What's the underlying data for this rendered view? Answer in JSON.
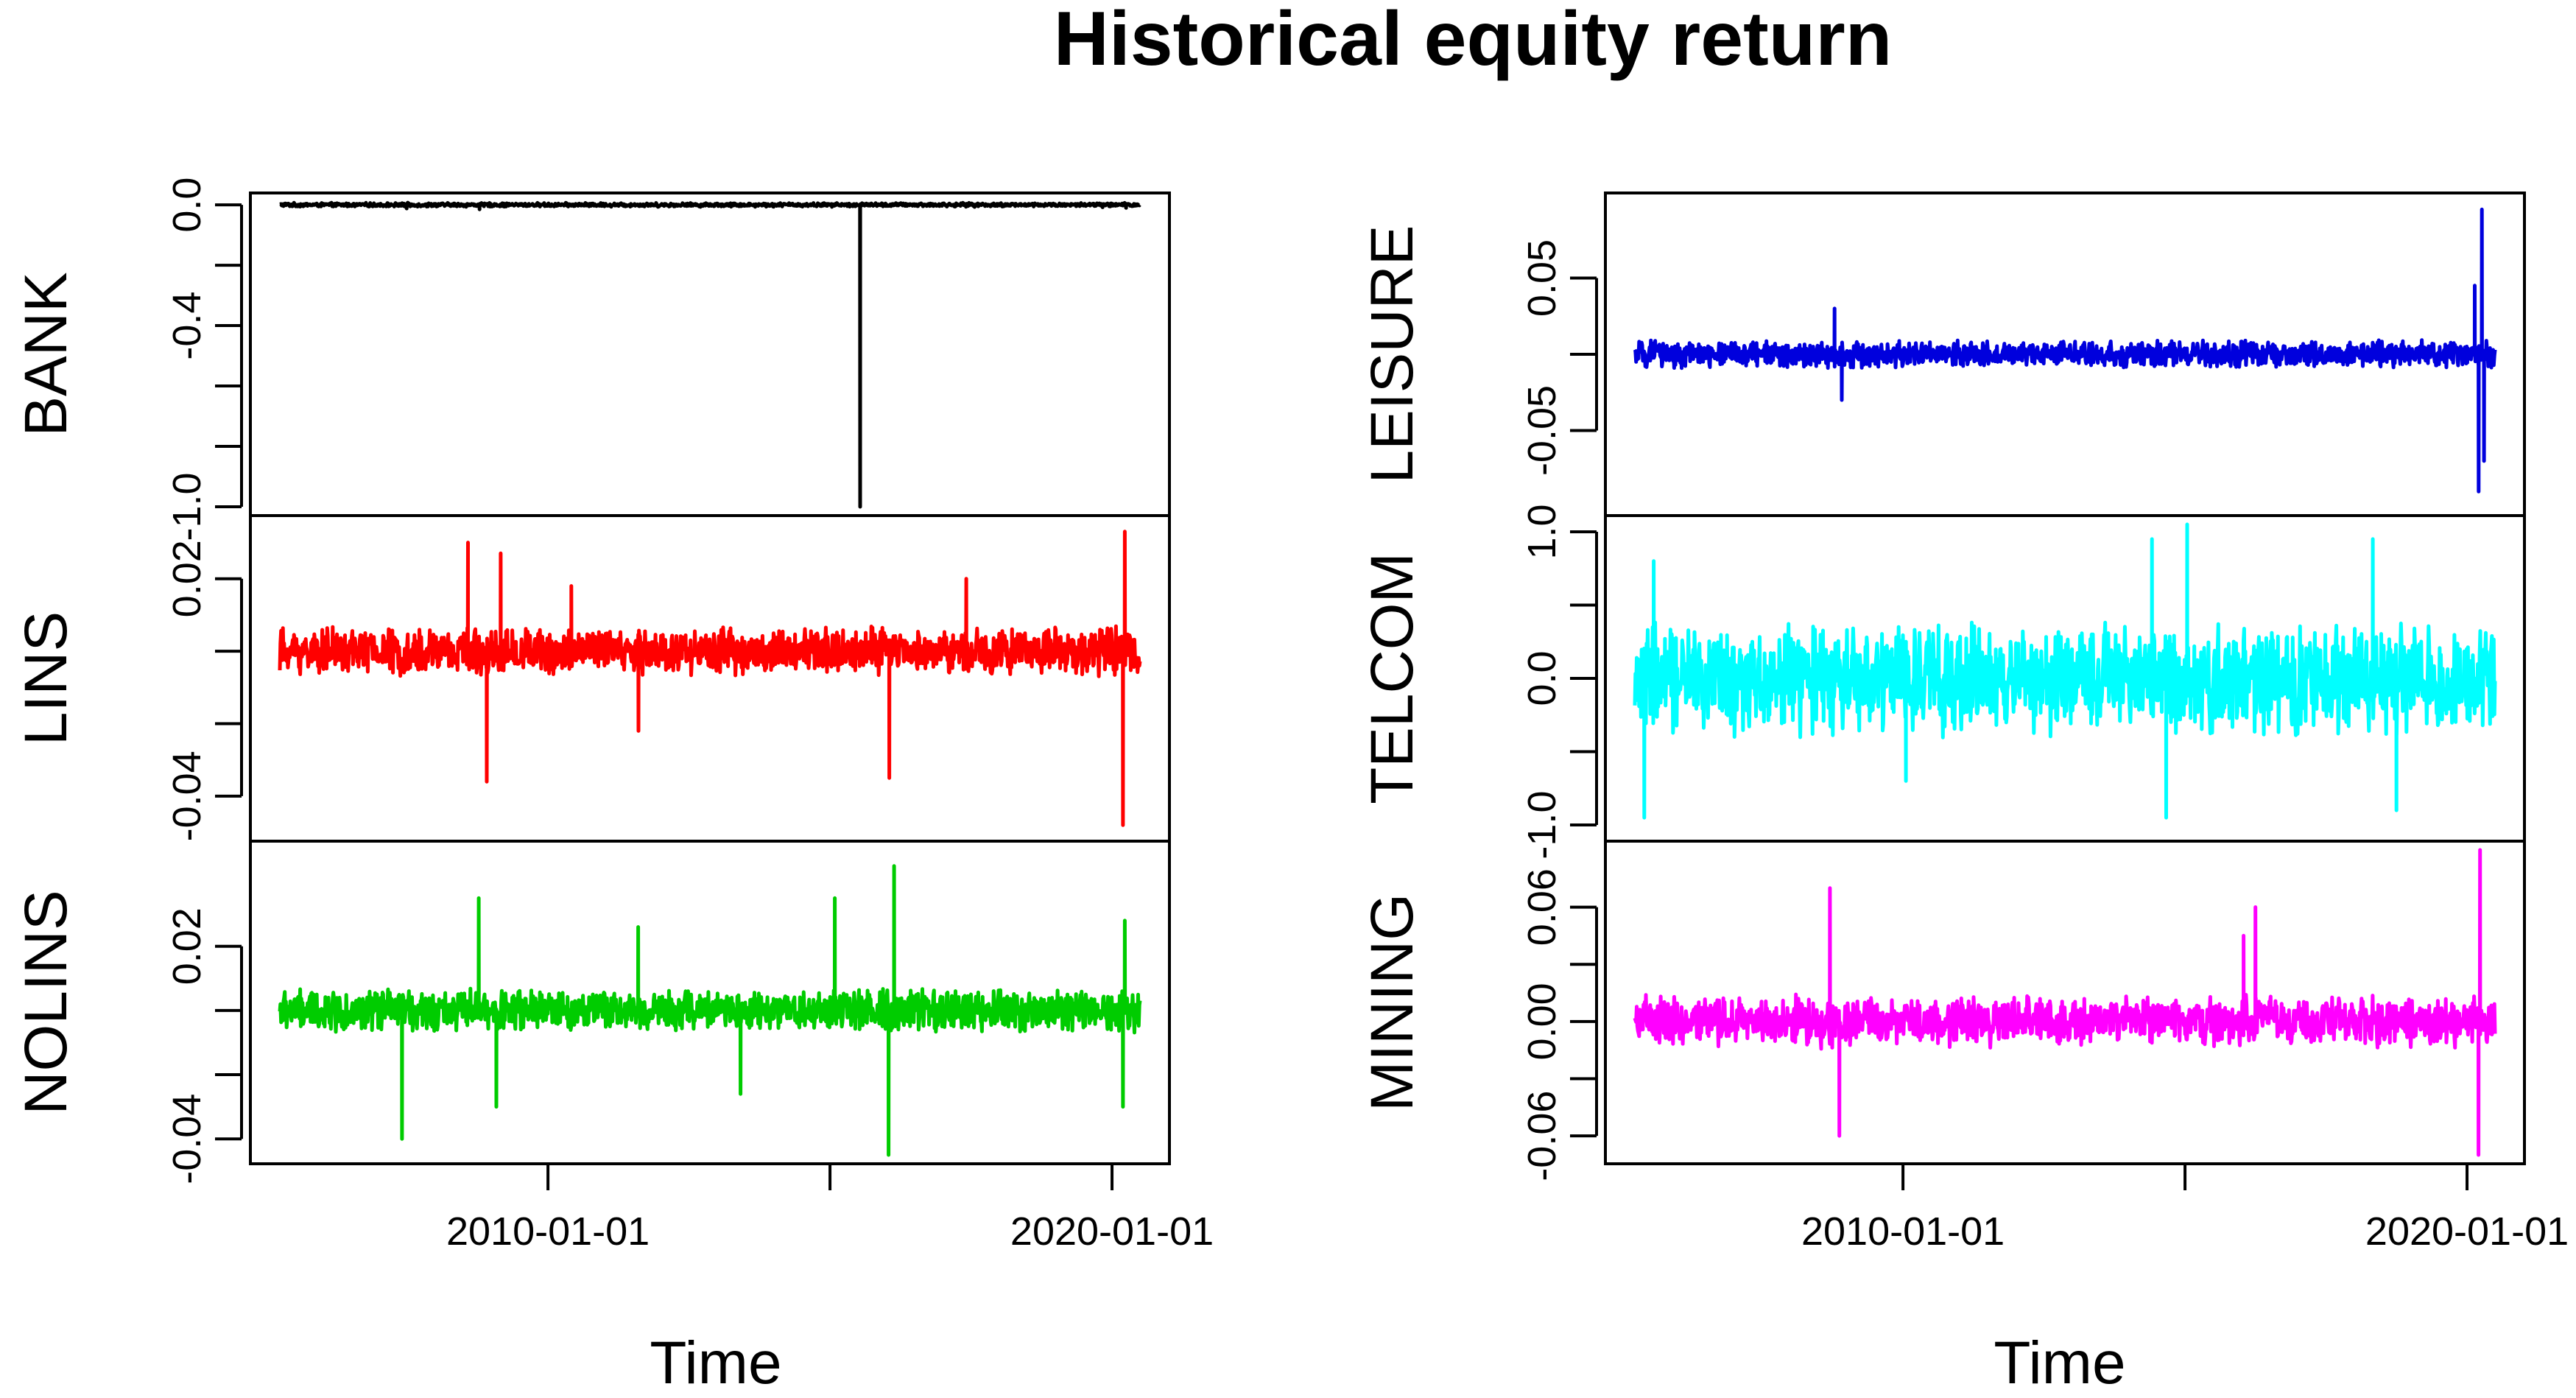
{
  "chart_data": {
    "type": "line",
    "title": "Historical equity return",
    "xlabel": "Time",
    "x_range": [
      "2005-04-01",
      "2020-06-30"
    ],
    "x_ticks": [
      "2010-01-01",
      "2015-01-01",
      "2020-01-01"
    ],
    "x_tick_labels": [
      "2010-01-01",
      "",
      "2020-01-01"
    ],
    "panels": [
      {
        "column": "left",
        "ylabel": "BANK",
        "color": "#000000",
        "ylim": [
          -1.0,
          0.01
        ],
        "y_ticks": [
          0.0,
          -0.2,
          -0.4,
          -0.6,
          -0.8,
          -1.0
        ],
        "y_tick_labels": [
          "0.0",
          "",
          "-0.4",
          "",
          "",
          "-1.0"
        ],
        "noise_amplitude": 0.006,
        "spikes": [
          {
            "date": "2015-07-15",
            "value": -1.0
          },
          {
            "date": "2007-07-01",
            "value": -0.012
          },
          {
            "date": "2008-10-15",
            "value": -0.015
          },
          {
            "date": "2019-11-01",
            "value": -0.008
          },
          {
            "date": "2020-04-01",
            "value": -0.01
          }
        ]
      },
      {
        "column": "left",
        "ylabel": "LINS",
        "color": "#ff0000",
        "ylim": [
          -0.05,
          0.035
        ],
        "y_ticks": [
          0.02,
          0.0,
          -0.02,
          -0.04
        ],
        "y_tick_labels": [
          "0.02",
          "",
          "",
          "-0.04"
        ],
        "noise_amplitude": 0.006,
        "spikes": [
          {
            "date": "2008-08-01",
            "value": 0.03
          },
          {
            "date": "2008-12-01",
            "value": -0.036
          },
          {
            "date": "2009-03-01",
            "value": 0.027
          },
          {
            "date": "2010-06-01",
            "value": 0.018
          },
          {
            "date": "2011-08-10",
            "value": -0.022
          },
          {
            "date": "2016-01-20",
            "value": -0.035
          },
          {
            "date": "2017-06-01",
            "value": 0.02
          },
          {
            "date": "2020-03-12",
            "value": -0.048
          },
          {
            "date": "2020-03-24",
            "value": 0.033
          }
        ]
      },
      {
        "column": "left",
        "ylabel": "NOLINS",
        "color": "#00cc00",
        "ylim": [
          -0.045,
          0.05
        ],
        "y_ticks": [
          0.02,
          0.0,
          -0.02,
          -0.04
        ],
        "y_tick_labels": [
          "0.02",
          "",
          "",
          "-0.04"
        ],
        "noise_amplitude": 0.006,
        "spikes": [
          {
            "date": "2007-06-01",
            "value": -0.04
          },
          {
            "date": "2008-10-10",
            "value": 0.035
          },
          {
            "date": "2009-02-01",
            "value": -0.03
          },
          {
            "date": "2011-08-08",
            "value": 0.026
          },
          {
            "date": "2013-06-01",
            "value": -0.026
          },
          {
            "date": "2015-02-01",
            "value": 0.035
          },
          {
            "date": "2016-01-15",
            "value": -0.045
          },
          {
            "date": "2016-02-20",
            "value": 0.045
          },
          {
            "date": "2020-03-12",
            "value": -0.03
          },
          {
            "date": "2020-03-24",
            "value": 0.028
          }
        ]
      },
      {
        "column": "right",
        "ylabel": "LEISURE",
        "color": "#0000dd",
        "ylim": [
          -0.1,
          0.1
        ],
        "y_ticks": [
          0.05,
          0.0,
          -0.05
        ],
        "y_tick_labels": [
          "0.05",
          "",
          "-0.05"
        ],
        "noise_amplitude": 0.008,
        "spikes": [
          {
            "date": "2008-10-15",
            "value": 0.03
          },
          {
            "date": "2008-12-01",
            "value": -0.03
          },
          {
            "date": "2020-02-20",
            "value": 0.045
          },
          {
            "date": "2020-03-16",
            "value": -0.09
          },
          {
            "date": "2020-04-06",
            "value": 0.095
          },
          {
            "date": "2020-04-20",
            "value": -0.07
          }
        ]
      },
      {
        "column": "right",
        "ylabel": "TELCOM",
        "color": "#00ffff",
        "ylim": [
          -1.05,
          1.05
        ],
        "y_ticks": [
          1.0,
          0.5,
          0.0,
          -0.5,
          -1.0
        ],
        "y_tick_labels": [
          "1.0",
          "",
          "0.0",
          "",
          "-1.0"
        ],
        "noise_amplitude": 0.35,
        "spikes": [
          {
            "date": "2005-06-01",
            "value": -0.95
          },
          {
            "date": "2005-08-01",
            "value": 0.8
          },
          {
            "date": "2010-01-20",
            "value": -0.7
          },
          {
            "date": "2014-06-01",
            "value": 0.95
          },
          {
            "date": "2014-09-01",
            "value": -0.95
          },
          {
            "date": "2015-01-15",
            "value": 1.05
          },
          {
            "date": "2018-05-01",
            "value": 0.95
          },
          {
            "date": "2018-10-01",
            "value": -0.9
          }
        ]
      },
      {
        "column": "right",
        "ylabel": "MINING",
        "color": "#ff00ff",
        "ylim": [
          -0.07,
          0.09
        ],
        "y_ticks": [
          0.06,
          0.03,
          0.0,
          -0.03,
          -0.06
        ],
        "y_tick_labels": [
          "0.06",
          "",
          "0.00",
          "",
          "-0.06"
        ],
        "noise_amplitude": 0.012,
        "spikes": [
          {
            "date": "2008-09-15",
            "value": 0.07
          },
          {
            "date": "2008-11-15",
            "value": -0.06
          },
          {
            "date": "2016-01-15",
            "value": 0.045
          },
          {
            "date": "2016-04-01",
            "value": 0.06
          },
          {
            "date": "2020-03-15",
            "value": -0.07
          },
          {
            "date": "2020-03-25",
            "value": 0.09
          }
        ]
      }
    ]
  }
}
